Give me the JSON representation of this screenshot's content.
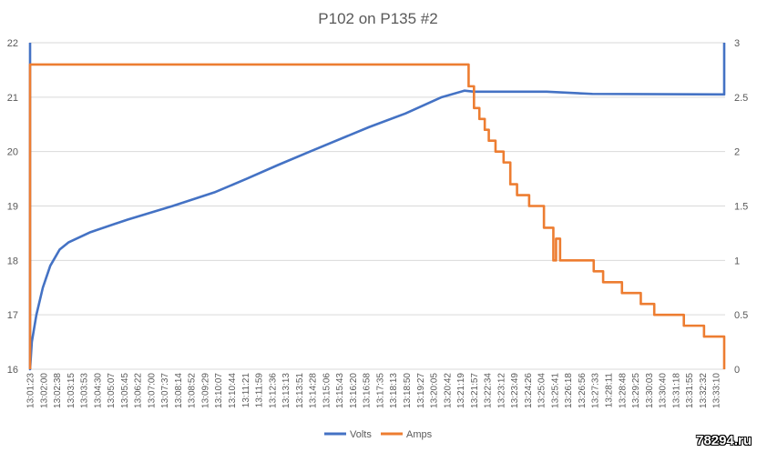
{
  "chart_data": {
    "type": "line",
    "title": "P102 on P135 #2",
    "xlabel": "",
    "ylabel": "",
    "y_left": {
      "lim": [
        16,
        22
      ],
      "ticks": [
        16,
        17,
        18,
        19,
        20,
        21,
        22
      ]
    },
    "y_right": {
      "lim": [
        0,
        3
      ],
      "ticks": [
        "0",
        "0.5",
        "1",
        "1.5",
        "2",
        "2.5",
        "3"
      ]
    },
    "grid": true,
    "legend": "bottom",
    "x_tick_labels": [
      "13:01:23",
      "13:02:00",
      "13:02:38",
      "13:03:15",
      "13:03:53",
      "13:04:30",
      "13:05:07",
      "13:05:45",
      "13:06:22",
      "13:07:00",
      "13:07:37",
      "13:08:14",
      "13:08:52",
      "13:09:29",
      "13:10:07",
      "13:10:44",
      "13:11:21",
      "13:11:59",
      "13:12:36",
      "13:13:13",
      "13:13:51",
      "13:14:28",
      "13:15:06",
      "13:15:43",
      "13:16:20",
      "13:16:58",
      "13:17:35",
      "13:18:13",
      "13:18:50",
      "13:19:27",
      "13:20:05",
      "13:20:42",
      "13:21:19",
      "13:21:57",
      "13:22:34",
      "13:23:12",
      "13:23:49",
      "13:24:26",
      "13:25:04",
      "13:25:41",
      "13:26:18",
      "13:26:56",
      "13:27:33",
      "13:28:11",
      "13:28:48",
      "13:29:25",
      "13:30:03",
      "13:30:40",
      "13:31:18",
      "13:31:55",
      "13:32:32",
      "13:33:10"
    ],
    "x_range_index": [
      0,
      51.6
    ],
    "series": [
      {
        "name": "Volts",
        "axis": "left",
        "color": "#4472C4",
        "step": false,
        "points": [
          [
            0,
            22
          ],
          [
            0,
            16
          ],
          [
            0.13,
            16.5
          ],
          [
            0.47,
            17.0
          ],
          [
            0.95,
            17.5
          ],
          [
            1.5,
            17.9
          ],
          [
            2.2,
            18.2
          ],
          [
            2.85,
            18.33
          ],
          [
            4.5,
            18.52
          ],
          [
            7.25,
            18.75
          ],
          [
            10.6,
            19.0
          ],
          [
            13.7,
            19.25
          ],
          [
            16.1,
            19.5
          ],
          [
            18.4,
            19.75
          ],
          [
            20.8,
            20.0
          ],
          [
            25.2,
            20.45
          ],
          [
            27.9,
            20.7
          ],
          [
            30.6,
            21.0
          ],
          [
            32.3,
            21.12
          ],
          [
            33,
            21.1
          ],
          [
            38.4,
            21.1
          ],
          [
            41.8,
            21.06
          ],
          [
            51.6,
            21.05
          ],
          [
            51.6,
            22
          ]
        ]
      },
      {
        "name": "Amps",
        "axis": "right",
        "color": "#ED7D31",
        "step": true,
        "points": [
          [
            0,
            0
          ],
          [
            0,
            2.8
          ],
          [
            32.6,
            2.6
          ],
          [
            33.0,
            2.4
          ],
          [
            33.4,
            2.3
          ],
          [
            33.8,
            2.2
          ],
          [
            34.1,
            2.1
          ],
          [
            34.6,
            2.0
          ],
          [
            35.2,
            1.9
          ],
          [
            35.7,
            1.7
          ],
          [
            36.2,
            1.6
          ],
          [
            37.1,
            1.5
          ],
          [
            38.2,
            1.3
          ],
          [
            38.9,
            1.0
          ],
          [
            39.1,
            1.2
          ],
          [
            39.4,
            1.0
          ],
          [
            41.9,
            0.9
          ],
          [
            42.6,
            0.8
          ],
          [
            44.0,
            0.7
          ],
          [
            45.4,
            0.6
          ],
          [
            46.4,
            0.5
          ],
          [
            48.6,
            0.4
          ],
          [
            50.1,
            0.3
          ],
          [
            51.6,
            0
          ]
        ]
      }
    ]
  },
  "watermark": "78294.ru"
}
